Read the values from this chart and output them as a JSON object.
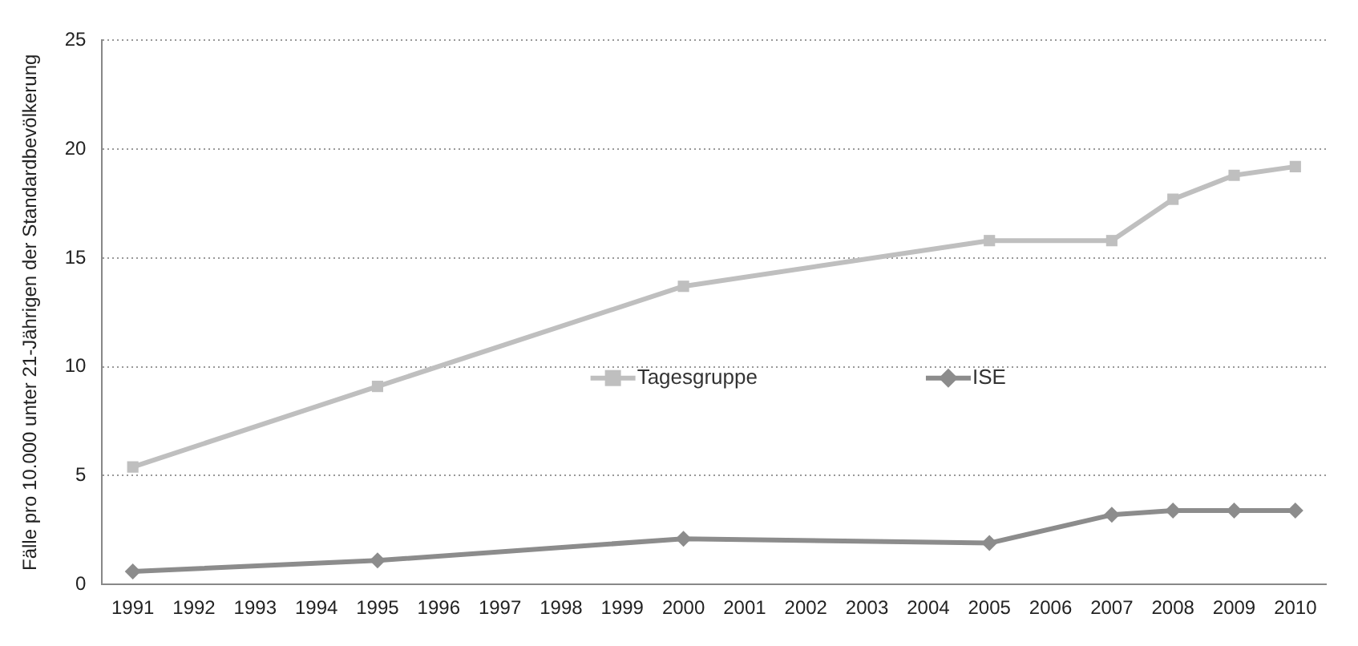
{
  "chart_data": {
    "type": "line",
    "ylabel": "Fälle pro 10.000 unter 21-Jährigen der Standardbevölkerung",
    "categories": [
      "1991",
      "1992",
      "1993",
      "1994",
      "1995",
      "1996",
      "1997",
      "1998",
      "1999",
      "2000",
      "2001",
      "2002",
      "2003",
      "2004",
      "2005",
      "2006",
      "2007",
      "2008",
      "2009",
      "2010"
    ],
    "series": [
      {
        "name": "Tagesgruppe",
        "color": "#bfbfbf",
        "marker": "square",
        "values": [
          5.4,
          null,
          null,
          null,
          9.1,
          null,
          null,
          null,
          null,
          13.7,
          null,
          null,
          null,
          null,
          15.8,
          null,
          15.8,
          17.7,
          18.8,
          19.2
        ]
      },
      {
        "name": "ISE",
        "color": "#8c8c8c",
        "marker": "diamond",
        "values": [
          0.6,
          null,
          null,
          null,
          1.1,
          null,
          null,
          null,
          null,
          2.1,
          null,
          null,
          null,
          null,
          1.9,
          null,
          3.2,
          3.4,
          3.4,
          3.4
        ]
      }
    ],
    "ylim": [
      0,
      25
    ],
    "yticks": [
      0,
      5,
      10,
      15,
      20,
      25
    ],
    "grid": "y",
    "legend": "center",
    "line_style": "solid"
  }
}
